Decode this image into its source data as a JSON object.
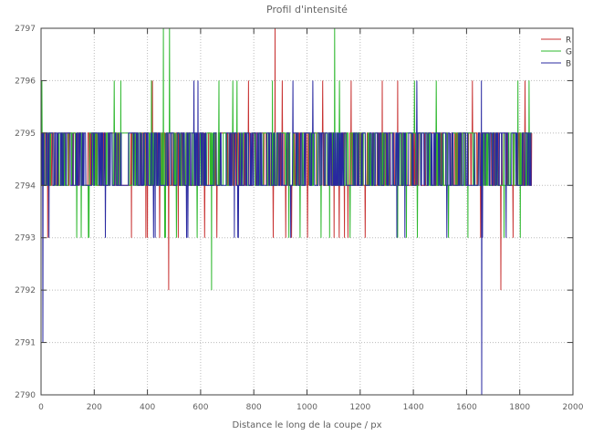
{
  "chart_data": {
    "type": "line",
    "title": "Profil d'intensité",
    "xlabel": "Distance le long de la coupe / px",
    "ylabel": "",
    "xlim": [
      0,
      2000
    ],
    "ylim": [
      2790,
      2797
    ],
    "xticks": [
      0,
      200,
      400,
      600,
      800,
      1000,
      1200,
      1400,
      1600,
      1800,
      2000
    ],
    "yticks": [
      2790,
      2791,
      2792,
      2793,
      2794,
      2795,
      2796,
      2797
    ],
    "grid": true,
    "legend_position": "top-right",
    "data_x_range": [
      0,
      1845
    ],
    "baseline_values": [
      2794,
      2795
    ],
    "noise_seed": 20,
    "series": [
      {
        "name": "R",
        "color": "#c83232",
        "p_down": 0.01,
        "p_up": 0.004,
        "anchor_spikes": [
          {
            "x": 880,
            "y": 2797
          },
          {
            "x": 480,
            "y": 2792
          },
          {
            "x": 1729,
            "y": 2792
          },
          {
            "x": 394,
            "y": 2793
          },
          {
            "x": 446,
            "y": 2793
          },
          {
            "x": 1166,
            "y": 2796
          },
          {
            "x": 1283,
            "y": 2796
          },
          {
            "x": 1341,
            "y": 2796
          },
          {
            "x": 1622,
            "y": 2796
          },
          {
            "x": 1820,
            "y": 2796
          }
        ]
      },
      {
        "name": "G",
        "color": "#2eb82e",
        "p_down": 0.011,
        "p_up": 0.006,
        "anchor_spikes": [
          {
            "x": 3,
            "y": 2796
          },
          {
            "x": 460,
            "y": 2797
          },
          {
            "x": 483,
            "y": 2797
          },
          {
            "x": 1104,
            "y": 2797
          },
          {
            "x": 641,
            "y": 2792
          },
          {
            "x": 300,
            "y": 2796
          },
          {
            "x": 669,
            "y": 2796
          },
          {
            "x": 737,
            "y": 2796
          },
          {
            "x": 1486,
            "y": 2796
          },
          {
            "x": 1835,
            "y": 2796
          }
        ]
      },
      {
        "name": "B",
        "color": "#2828a0",
        "p_down": 0.011,
        "p_up": 0.002,
        "anchor_spikes": [
          {
            "x": 7,
            "y": 2791
          },
          {
            "x": 1657,
            "y": 2790
          },
          {
            "x": 575,
            "y": 2796
          },
          {
            "x": 590,
            "y": 2796
          },
          {
            "x": 1022,
            "y": 2796
          }
        ]
      }
    ],
    "colors": {
      "border": "#404040",
      "grid": "#bbbbbb",
      "tick_text": "#5f5f5f",
      "title_text": "#666666"
    }
  }
}
